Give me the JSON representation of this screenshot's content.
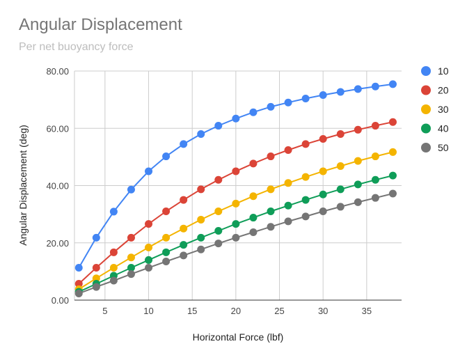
{
  "chart_data": {
    "type": "line",
    "title": "Angular Displacement",
    "subtitle": "Per net buoyancy force",
    "xlabel": "Horizontal Force (lbf)",
    "ylabel": "Angular Displacement (deg)",
    "xlim": [
      1.5,
      39
    ],
    "ylim": [
      0,
      80
    ],
    "xticks": [
      "5",
      "10",
      "15",
      "20",
      "25",
      "30",
      "35"
    ],
    "yticks": [
      "0.00",
      "20.00",
      "40.00",
      "60.00",
      "80.00"
    ],
    "grid": true,
    "legend": "right",
    "x": [
      2,
      4,
      6,
      8,
      10,
      12,
      14,
      16,
      18,
      20,
      22,
      24,
      26,
      28,
      30,
      32,
      34,
      36,
      38
    ],
    "series": [
      {
        "name": "10",
        "color": "#4285f4",
        "values": [
          11.3,
          21.8,
          30.9,
          38.6,
          45.0,
          50.2,
          54.5,
          58.0,
          60.9,
          63.4,
          65.6,
          67.5,
          69.0,
          70.4,
          71.6,
          72.7,
          73.7,
          74.6,
          75.4
        ]
      },
      {
        "name": "20",
        "color": "#db4437",
        "values": [
          5.7,
          11.3,
          16.7,
          21.8,
          26.6,
          31.0,
          35.0,
          38.7,
          42.0,
          45.0,
          47.7,
          50.2,
          52.4,
          54.5,
          56.3,
          58.0,
          59.5,
          60.9,
          62.2
        ]
      },
      {
        "name": "30",
        "color": "#f4b400",
        "values": [
          3.8,
          7.6,
          11.3,
          14.9,
          18.4,
          21.8,
          25.0,
          28.1,
          31.0,
          33.7,
          36.3,
          38.7,
          40.9,
          43.0,
          45.0,
          46.8,
          48.6,
          50.2,
          51.7
        ]
      },
      {
        "name": "40",
        "color": "#0f9d58",
        "values": [
          2.9,
          5.7,
          8.5,
          11.3,
          14.0,
          16.7,
          19.3,
          21.8,
          24.2,
          26.6,
          28.8,
          31.0,
          33.0,
          35.0,
          36.9,
          38.7,
          40.4,
          42.0,
          43.5
        ]
      },
      {
        "name": "50",
        "color": "#757575",
        "values": [
          2.3,
          4.6,
          6.8,
          9.1,
          11.3,
          13.5,
          15.6,
          17.7,
          19.8,
          21.8,
          23.7,
          25.6,
          27.5,
          29.2,
          31.0,
          32.6,
          34.2,
          35.7,
          37.2
        ]
      }
    ]
  }
}
